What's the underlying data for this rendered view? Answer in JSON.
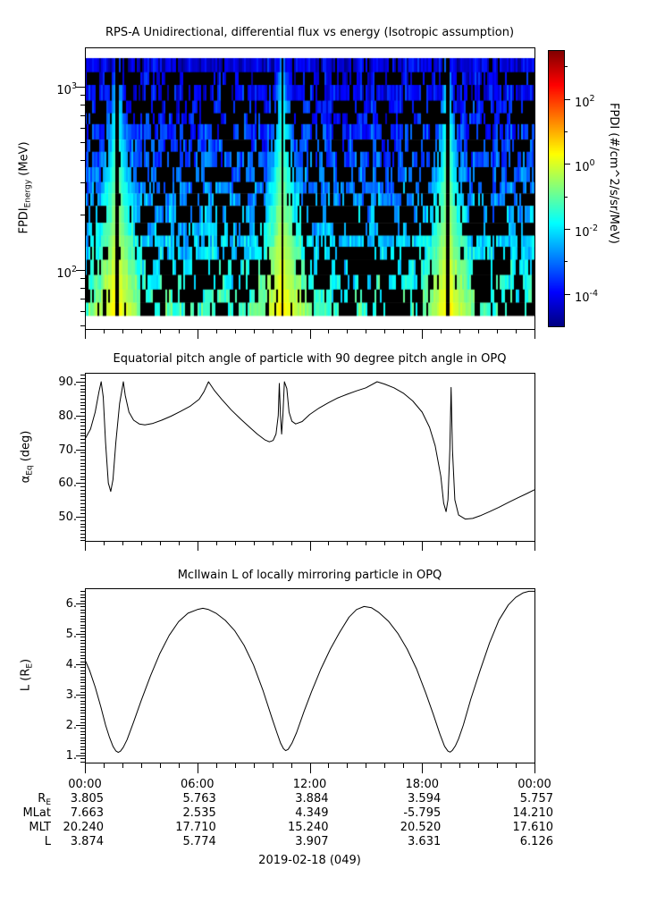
{
  "figure": {
    "date_label": "2019-02-18 (049)"
  },
  "time_axis": {
    "tick_labels": [
      "00:00",
      "06:00",
      "12:00",
      "18:00",
      "00:00"
    ],
    "tick_hours": [
      0,
      6,
      12,
      18,
      24
    ],
    "minor_step_hours": 1
  },
  "panels": {
    "spectrogram": {
      "title": "RPS-A Unidirectional, differential flux vs energy (Isotropic assumption)",
      "ylabel_parts": [
        {
          "t": "FPDI"
        },
        {
          "sub": "Energy"
        },
        {
          "t": " (MeV)"
        }
      ],
      "ytick_major_exps": [
        3,
        2
      ],
      "colorbar": {
        "title": "FPDI (#/cm^2/s/sr/MeV)",
        "major_tick_exps": [
          2,
          0,
          -2,
          -4
        ],
        "minor_tick_exps": [
          3,
          1,
          -1,
          -3
        ],
        "log_range": [
          -5,
          3.5
        ]
      }
    },
    "pitch_angle": {
      "title": "Equatorial pitch angle of particle with 90 degree pitch angle in OPQ",
      "ylabel_parts": [
        {
          "t": "α"
        },
        {
          "sub": "Eq"
        },
        {
          "t": " (deg)"
        }
      ],
      "ytick_labels": [
        "90.",
        "80.",
        "70.",
        "60.",
        "50."
      ],
      "ytick_values": [
        90,
        80,
        70,
        60,
        50
      ]
    },
    "mcilwain_l": {
      "title": "McIlwain L of locally mirroring particle in OPQ",
      "ylabel_parts": [
        {
          "t": "L (R"
        },
        {
          "sub": "E"
        },
        {
          "t": ")"
        }
      ],
      "ytick_labels": [
        "6.",
        "5.",
        "4.",
        "3.",
        "2.",
        "1."
      ],
      "ytick_values": [
        6,
        5,
        4,
        3,
        2,
        1
      ]
    }
  },
  "ephemeris": {
    "rows": [
      {
        "label_parts": [
          {
            "t": "R"
          },
          {
            "sub": "E"
          }
        ],
        "values": [
          "3.805",
          "5.763",
          "3.884",
          "3.594",
          "5.757"
        ]
      },
      {
        "label_parts": [
          {
            "t": "MLat"
          }
        ],
        "values": [
          "7.663",
          "2.535",
          "4.349",
          "-5.795",
          "14.210"
        ]
      },
      {
        "label_parts": [
          {
            "t": "MLT"
          }
        ],
        "values": [
          "20.240",
          "17.710",
          "15.240",
          "20.520",
          "17.610"
        ]
      },
      {
        "label_parts": [
          {
            "t": "L"
          }
        ],
        "values": [
          "3.874",
          "5.774",
          "3.907",
          "3.631",
          "6.126"
        ]
      }
    ]
  },
  "chart_data": [
    {
      "type": "heatmap",
      "panel": "spectrogram",
      "title": "RPS-A Unidirectional, differential flux vs energy (Isotropic assumption)",
      "xlabel": "",
      "ylabel": "FPDI_Energy (MeV)",
      "x_range_hours": [
        0,
        24
      ],
      "energy_range_mev": [
        55,
        1400
      ],
      "y_scale": "log",
      "energy_tick_labels": [
        "10^2",
        "10^3"
      ],
      "value_label": "FPDI (#/cm^2/s/sr/MeV)",
      "value_log10_range": [
        -5,
        3.5
      ],
      "colormap": "jet",
      "no_data_color": "#000000",
      "background_log10flux_top_to_bottom": [
        -4.3,
        -1.3
      ],
      "perigee_enhancement_hours": [
        1.72,
        10.55,
        19.35
      ],
      "enhancement_halfwidth_hours_top": 0.15,
      "enhancement_halfwidth_hours_bottom": 2.0,
      "enhancement_peak_log10flux_bottom": 0.6,
      "data_gap_at_perigee_halfwidth_hours": 0.07,
      "dropout_fraction": 0.35,
      "n_energy_bins": 19,
      "render_seed": 42
    },
    {
      "type": "line",
      "panel": "pitch_angle",
      "title": "Equatorial pitch angle of particle with 90 degree pitch angle in OPQ",
      "xlabel": "",
      "ylabel": "alpha_Eq (deg)",
      "xlim_hours": [
        0,
        24
      ],
      "ylim": [
        42.9,
        92.7
      ],
      "yticks": [
        50,
        60,
        70,
        80,
        90
      ],
      "x_hours": [
        0,
        0.3,
        0.55,
        0.75,
        0.87,
        0.98,
        1.1,
        1.25,
        1.38,
        1.5,
        1.65,
        1.85,
        2.05,
        2.15,
        2.35,
        2.6,
        2.9,
        3.2,
        3.6,
        4.1,
        4.6,
        5.1,
        5.6,
        6.1,
        6.35,
        6.6,
        6.9,
        7.3,
        7.8,
        8.3,
        8.8,
        9.2,
        9.6,
        9.85,
        10.05,
        10.2,
        10.32,
        10.38,
        10.44,
        10.5,
        10.57,
        10.65,
        10.78,
        10.9,
        11.05,
        11.25,
        11.6,
        12.0,
        12.5,
        13.0,
        13.5,
        14.0,
        14.5,
        15.0,
        15.6,
        16.0,
        16.5,
        17.0,
        17.5,
        18.0,
        18.4,
        18.7,
        19.0,
        19.15,
        19.28,
        19.38,
        19.48,
        19.55,
        19.62,
        19.75,
        19.95,
        20.3,
        20.7,
        21.1,
        21.6,
        22.1,
        22.6,
        23.1,
        23.6,
        24.0
      ],
      "y_deg": [
        73,
        76,
        81,
        87,
        90,
        85.5,
        72,
        60,
        57.5,
        61,
        72,
        83.5,
        90,
        86,
        81,
        78.6,
        77.5,
        77.2,
        77.6,
        78.6,
        79.8,
        81.2,
        82.7,
        84.8,
        87,
        90,
        87.5,
        84.8,
        81.7,
        79.0,
        76.5,
        74.5,
        72.8,
        72.2,
        72.6,
        74.5,
        80,
        89.5,
        80,
        74.5,
        80,
        90,
        88,
        81,
        78.3,
        77.5,
        78.2,
        80.3,
        82.2,
        83.8,
        85.2,
        86.3,
        87.3,
        88.2,
        90,
        89.3,
        88.2,
        86.6,
        84.3,
        81.0,
        76.5,
        71,
        62,
        54,
        51.5,
        55,
        70,
        88.3,
        70,
        55,
        50.5,
        49.3,
        49.5,
        50.3,
        51.5,
        52.8,
        54.2,
        55.6,
        56.9,
        58
      ]
    },
    {
      "type": "line",
      "panel": "mcilwain_l",
      "title": "McIlwain L of locally mirroring particle in OPQ",
      "xlabel": "",
      "ylabel": "L (R_E)",
      "xlim_hours": [
        0,
        24
      ],
      "ylim": [
        0.77,
        6.5
      ],
      "yticks": [
        1,
        2,
        3,
        4,
        5,
        6
      ],
      "x_hours": [
        0,
        0.25,
        0.55,
        0.85,
        1.1,
        1.3,
        1.5,
        1.65,
        1.78,
        1.9,
        2.05,
        2.25,
        2.6,
        3.0,
        3.5,
        4.0,
        4.5,
        5.0,
        5.5,
        6.0,
        6.3,
        6.6,
        7.0,
        7.5,
        8.0,
        8.5,
        9.0,
        9.5,
        10.0,
        10.25,
        10.45,
        10.6,
        10.72,
        10.85,
        11.05,
        11.3,
        11.7,
        12.1,
        12.6,
        13.1,
        13.6,
        14.1,
        14.5,
        14.9,
        15.3,
        15.7,
        16.2,
        16.7,
        17.2,
        17.7,
        18.2,
        18.6,
        18.95,
        19.2,
        19.38,
        19.5,
        19.62,
        19.78,
        19.95,
        20.2,
        20.6,
        21.1,
        21.6,
        22.1,
        22.6,
        23.0,
        23.4,
        23.7,
        24.0
      ],
      "y_l": [
        4.15,
        3.8,
        3.25,
        2.6,
        2.0,
        1.62,
        1.3,
        1.15,
        1.1,
        1.14,
        1.27,
        1.52,
        2.1,
        2.8,
        3.62,
        4.35,
        4.95,
        5.4,
        5.68,
        5.8,
        5.84,
        5.8,
        5.68,
        5.44,
        5.1,
        4.62,
        3.98,
        3.15,
        2.2,
        1.75,
        1.4,
        1.22,
        1.16,
        1.2,
        1.4,
        1.75,
        2.45,
        3.1,
        3.85,
        4.5,
        5.05,
        5.55,
        5.8,
        5.9,
        5.86,
        5.7,
        5.42,
        5.02,
        4.5,
        3.85,
        3.05,
        2.35,
        1.7,
        1.3,
        1.14,
        1.11,
        1.17,
        1.32,
        1.55,
        2.0,
        2.85,
        3.8,
        4.7,
        5.45,
        5.95,
        6.2,
        6.35,
        6.4,
        6.4
      ]
    }
  ]
}
